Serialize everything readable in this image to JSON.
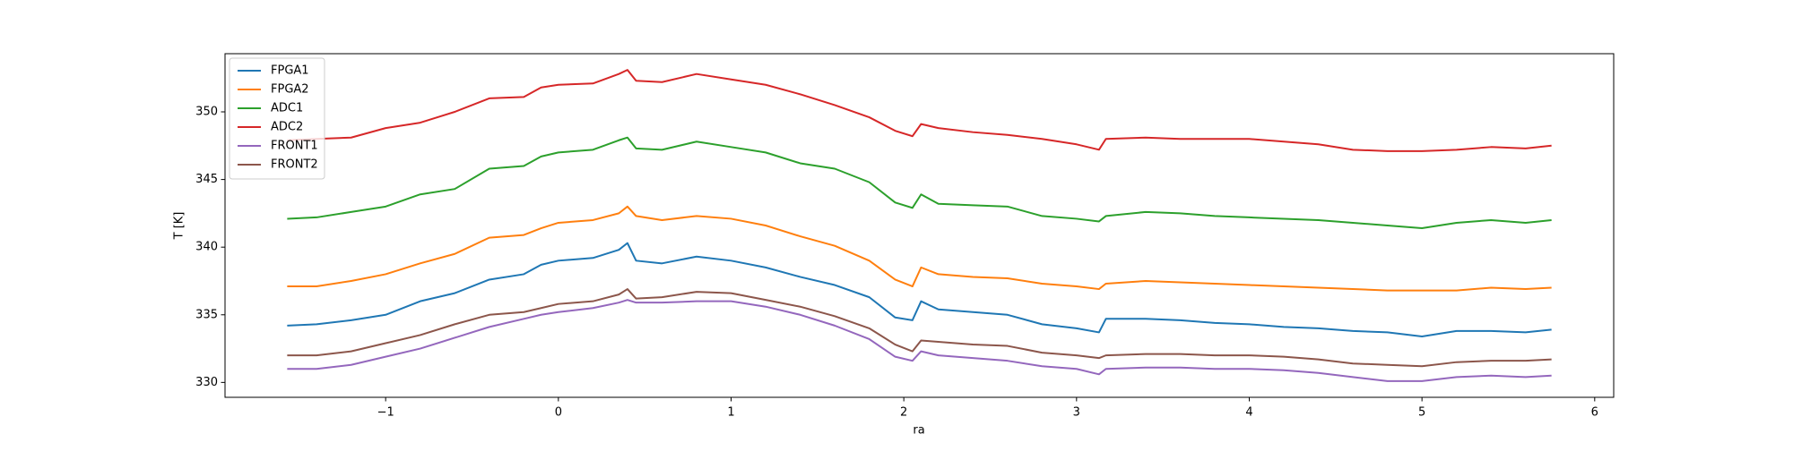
{
  "chart_data": {
    "type": "line",
    "xlabel": "ra",
    "ylabel": "T [K]",
    "x": [
      -1.57,
      -1.4,
      -1.2,
      -1.0,
      -0.8,
      -0.6,
      -0.4,
      -0.2,
      -0.1,
      0,
      0.2,
      0.35,
      0.4,
      0.45,
      0.6,
      0.8,
      1.0,
      1.2,
      1.4,
      1.6,
      1.8,
      1.95,
      2.05,
      2.1,
      2.2,
      2.4,
      2.6,
      2.8,
      3.0,
      3.13,
      3.17,
      3.4,
      3.6,
      3.8,
      4.0,
      4.2,
      4.4,
      4.6,
      4.8,
      5.0,
      5.2,
      5.4,
      5.6,
      5.75
    ],
    "series": [
      {
        "name": "FPGA1",
        "color": "#1f77b4",
        "values": [
          334.2,
          334.3,
          334.6,
          335.0,
          336.0,
          336.6,
          337.6,
          338.0,
          338.7,
          339.0,
          339.2,
          339.8,
          340.3,
          339.0,
          338.8,
          339.3,
          339.0,
          338.5,
          337.8,
          337.2,
          336.3,
          334.8,
          334.6,
          336.0,
          335.4,
          335.2,
          335.0,
          334.3,
          334.0,
          333.7,
          334.7,
          334.7,
          334.6,
          334.4,
          334.3,
          334.1,
          334.0,
          333.8,
          333.7,
          333.4,
          333.8,
          333.8,
          333.7,
          333.9
        ]
      },
      {
        "name": "FPGA2",
        "color": "#ff7f0e",
        "values": [
          337.1,
          337.1,
          337.5,
          338.0,
          338.8,
          339.5,
          340.7,
          340.9,
          341.4,
          341.8,
          342.0,
          342.5,
          343.0,
          342.3,
          342.0,
          342.3,
          342.1,
          341.6,
          340.8,
          340.1,
          339.0,
          337.6,
          337.1,
          338.5,
          338.0,
          337.8,
          337.7,
          337.3,
          337.1,
          336.9,
          337.3,
          337.5,
          337.4,
          337.3,
          337.2,
          337.1,
          337.0,
          336.9,
          336.8,
          336.8,
          336.8,
          337.0,
          336.9,
          337.0
        ]
      },
      {
        "name": "ADC1",
        "color": "#2ca02c",
        "values": [
          342.1,
          342.2,
          342.6,
          343.0,
          343.9,
          344.3,
          345.8,
          346.0,
          346.7,
          347.0,
          347.2,
          347.9,
          348.1,
          347.3,
          347.2,
          347.8,
          347.4,
          347.0,
          346.2,
          345.8,
          344.8,
          343.3,
          342.9,
          343.9,
          343.2,
          343.1,
          343.0,
          342.3,
          342.1,
          341.9,
          342.3,
          342.6,
          342.5,
          342.3,
          342.2,
          342.1,
          342.0,
          341.8,
          341.6,
          341.4,
          341.8,
          342.0,
          341.8,
          342.0
        ]
      },
      {
        "name": "ADC2",
        "color": "#d62728",
        "values": [
          347.9,
          348.0,
          348.1,
          348.8,
          349.2,
          350.0,
          351.0,
          351.1,
          351.8,
          352.0,
          352.1,
          352.8,
          353.1,
          352.3,
          352.2,
          352.8,
          352.4,
          352.0,
          351.3,
          350.5,
          349.6,
          348.6,
          348.2,
          349.1,
          348.8,
          348.5,
          348.3,
          348.0,
          347.6,
          347.2,
          348.0,
          348.1,
          348.0,
          348.0,
          348.0,
          347.8,
          347.6,
          347.2,
          347.1,
          347.1,
          347.2,
          347.4,
          347.3,
          347.5
        ]
      },
      {
        "name": "FRONT1",
        "color": "#9467bd",
        "values": [
          331.0,
          331.0,
          331.3,
          331.9,
          332.5,
          333.3,
          334.1,
          334.7,
          335.0,
          335.2,
          335.5,
          335.9,
          336.1,
          335.9,
          335.9,
          336.0,
          336.0,
          335.6,
          335.0,
          334.2,
          333.2,
          331.9,
          331.6,
          332.3,
          332.0,
          331.8,
          331.6,
          331.2,
          331.0,
          330.6,
          331.0,
          331.1,
          331.1,
          331.0,
          331.0,
          330.9,
          330.7,
          330.4,
          330.1,
          330.1,
          330.4,
          330.5,
          330.4,
          330.5
        ]
      },
      {
        "name": "FRONT2",
        "color": "#8c564b",
        "values": [
          332.0,
          332.0,
          332.3,
          332.9,
          333.5,
          334.3,
          335.0,
          335.2,
          335.5,
          335.8,
          336.0,
          336.5,
          336.9,
          336.2,
          336.3,
          336.7,
          336.6,
          336.1,
          335.6,
          334.9,
          334.0,
          332.8,
          332.3,
          333.1,
          333.0,
          332.8,
          332.7,
          332.2,
          332.0,
          331.8,
          332.0,
          332.1,
          332.1,
          332.0,
          332.0,
          331.9,
          331.7,
          331.4,
          331.3,
          331.2,
          331.5,
          331.6,
          331.6,
          331.7
        ]
      }
    ],
    "xlim": [
      -1.93,
      6.11
    ],
    "ylim": [
      328.9,
      354.3
    ],
    "xticks": [
      {
        "value": -1,
        "label": "−1"
      },
      0,
      1,
      2,
      3,
      4,
      5,
      6
    ],
    "yticks": [
      330,
      335,
      340,
      345,
      350
    ],
    "legend": "upper left",
    "grid": false
  }
}
